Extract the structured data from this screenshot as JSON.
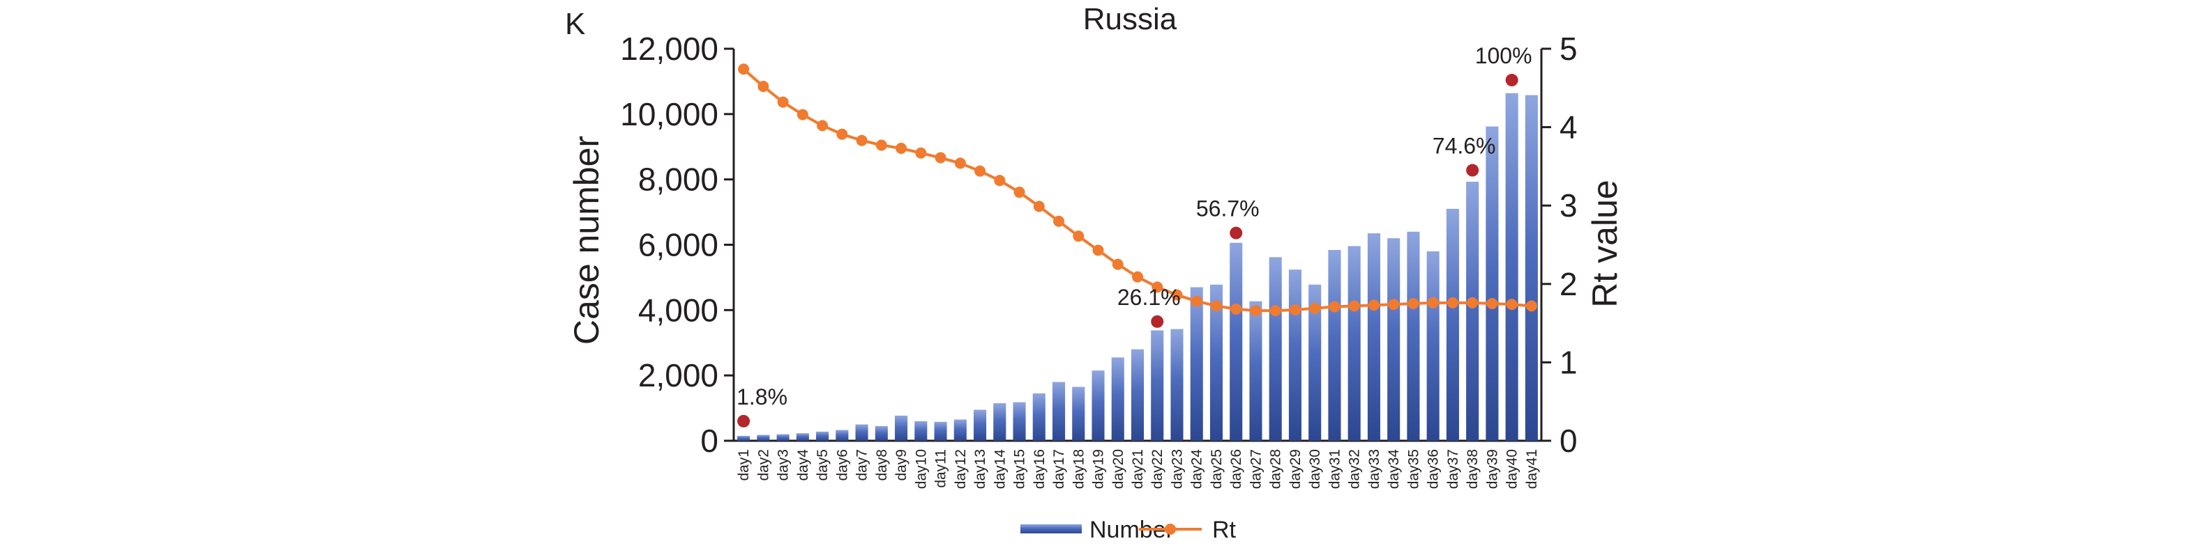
{
  "panel_label": "K",
  "chart_data": {
    "type": "bar",
    "title": "Russia",
    "xlabel": "",
    "ylabel": "Case number",
    "y2label": "Rt value",
    "ylim": [
      0,
      12000
    ],
    "y2lim": [
      0,
      5
    ],
    "yticks": [
      "0",
      "2,000",
      "4,000",
      "6,000",
      "8,000",
      "10,000",
      "12,000"
    ],
    "y2ticks": [
      "0",
      "1",
      "2",
      "3",
      "4",
      "5"
    ],
    "categories": [
      "day1",
      "day2",
      "day3",
      "day4",
      "day5",
      "day6",
      "day7",
      "day8",
      "day9",
      "day10",
      "day11",
      "day12",
      "day13",
      "day14",
      "day15",
      "day16",
      "day17",
      "day18",
      "day19",
      "day20",
      "day21",
      "day22",
      "day23",
      "day24",
      "day25",
      "day26",
      "day27",
      "day28",
      "day29",
      "day30",
      "day31",
      "day32",
      "day33",
      "day34",
      "day35",
      "day36",
      "day37",
      "day38",
      "day39",
      "day40",
      "day41"
    ],
    "series": [
      {
        "name": "Number",
        "type": "bar",
        "axis": "left",
        "color": "#3c5ba8",
        "values": [
          150,
          180,
          200,
          230,
          280,
          330,
          500,
          450,
          770,
          600,
          580,
          650,
          950,
          1150,
          1180,
          1450,
          1800,
          1650,
          2150,
          2550,
          2800,
          3380,
          3420,
          4700,
          4780,
          6060,
          4270,
          5620,
          5240,
          4780,
          5840,
          5960,
          6350,
          6200,
          6400,
          5800,
          7100,
          7930,
          9620,
          10640,
          10580
        ]
      },
      {
        "name": "Rt",
        "type": "line",
        "axis": "right",
        "color": "#f07b2f",
        "values": [
          4.74,
          4.52,
          4.32,
          4.16,
          4.02,
          3.91,
          3.83,
          3.77,
          3.73,
          3.67,
          3.61,
          3.54,
          3.44,
          3.32,
          3.17,
          2.99,
          2.8,
          2.61,
          2.43,
          2.25,
          2.09,
          1.96,
          1.86,
          1.78,
          1.72,
          1.68,
          1.66,
          1.66,
          1.67,
          1.69,
          1.71,
          1.72,
          1.73,
          1.74,
          1.75,
          1.76,
          1.76,
          1.76,
          1.75,
          1.74,
          1.72
        ]
      }
    ],
    "annotations": [
      {
        "label": "1.8%",
        "day": "day1",
        "rt": 0.25
      },
      {
        "label": "26.1%",
        "day": "day22",
        "rt": 1.52
      },
      {
        "label": "56.7%",
        "day": "day26",
        "rt": 2.65
      },
      {
        "label": "74.6%",
        "day": "day38",
        "rt": 3.45
      },
      {
        "label": "100%",
        "day": "day40",
        "rt": 4.6
      }
    ],
    "marker_color": "#b3262b",
    "legend": {
      "position": "bottom",
      "items": [
        "Number",
        "Rt"
      ]
    }
  }
}
